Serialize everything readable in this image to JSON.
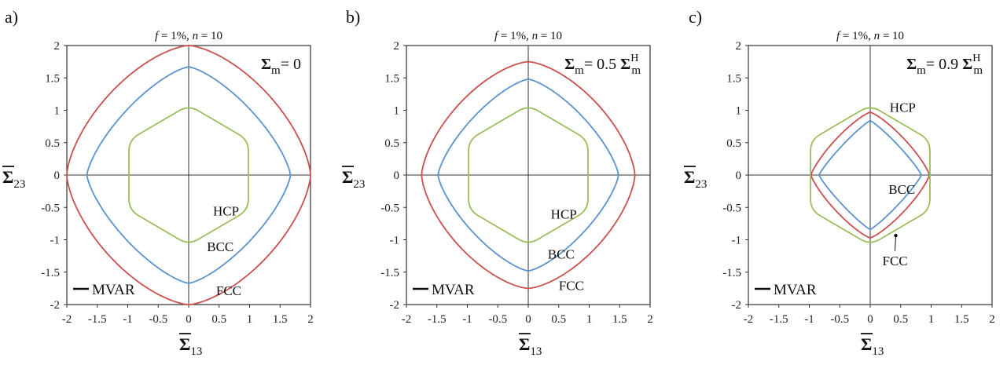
{
  "colors": {
    "FCC": "#c9504f",
    "BCC": "#5b93cf",
    "HCP": "#9bbd5c",
    "axes": "#333333"
  },
  "chart_data": [
    {
      "panel_letter": "a)",
      "type": "line",
      "subtitle": {
        "pre": "f",
        "mid": " = 1%, ",
        "n": "n",
        "post": " = 10"
      },
      "annotation": {
        "main": "Σ",
        "sub": "m",
        "rest": "= 0",
        "coef": "",
        "sup": ""
      },
      "xlabel": {
        "main": "Σ",
        "sub": "13"
      },
      "ylabel": {
        "main": "Σ",
        "sub": "23"
      },
      "xlim": [
        -2,
        2
      ],
      "ylim": [
        -2,
        2
      ],
      "xticks": [
        "-2",
        "-1.5",
        "-1",
        "-0.5",
        "0",
        "0.5",
        "1",
        "1.5",
        "2"
      ],
      "yticks": [
        "-2",
        "-1.5",
        "-1",
        "-0.5",
        "0",
        "0.5",
        "1",
        "1.5",
        "2"
      ],
      "legend": {
        "label": "MVAR",
        "position": "bottom-left"
      },
      "series": [
        {
          "name": "FCC",
          "shape": "squircle",
          "radius": 2.0,
          "exponent": 1.3,
          "label_at": [
            0.45,
            -1.78
          ]
        },
        {
          "name": "BCC",
          "shape": "squircle",
          "radius": 1.67,
          "exponent": 1.45,
          "label_at": [
            0.3,
            -1.1
          ]
        },
        {
          "name": "HCP",
          "shape": "hexagon",
          "radius": 1.08,
          "half_width": 0.98,
          "label_at": [
            0.4,
            -0.55
          ]
        }
      ]
    },
    {
      "panel_letter": "b)",
      "type": "line",
      "subtitle": {
        "pre": "f",
        "mid": " = 1%, ",
        "n": "n",
        "post": " = 10"
      },
      "annotation": {
        "main": "Σ",
        "sub": "m",
        "rest": "= 0.5 ",
        "coef": "Σ",
        "sup": "H"
      },
      "xlabel": {
        "main": "Σ",
        "sub": "13"
      },
      "ylabel": {
        "main": "Σ",
        "sub": "23"
      },
      "xlim": [
        -2,
        2
      ],
      "ylim": [
        -2,
        2
      ],
      "xticks": [
        "-2",
        "-1.5",
        "-1",
        "-0.5",
        "0",
        "0.5",
        "1",
        "1.5",
        "2"
      ],
      "yticks": [
        "-2",
        "-1.5",
        "-1",
        "-0.5",
        "0",
        "0.5",
        "1",
        "1.5",
        "2"
      ],
      "legend": {
        "label": "MVAR",
        "position": "bottom-left"
      },
      "series": [
        {
          "name": "FCC",
          "shape": "squircle",
          "radius": 1.75,
          "exponent": 1.3,
          "label_at": [
            0.5,
            -1.7
          ]
        },
        {
          "name": "BCC",
          "shape": "squircle",
          "radius": 1.48,
          "exponent": 1.45,
          "label_at": [
            0.32,
            -1.22
          ]
        },
        {
          "name": "HCP",
          "shape": "hexagon",
          "radius": 1.08,
          "half_width": 0.98,
          "label_at": [
            0.37,
            -0.6
          ]
        }
      ]
    },
    {
      "panel_letter": "c)",
      "type": "line",
      "subtitle": {
        "pre": "f",
        "mid": " = 1%, ",
        "n": "n",
        "post": " = 10"
      },
      "annotation": {
        "main": "Σ",
        "sub": "m",
        "rest": "= 0.9 ",
        "coef": "Σ",
        "sup": "H"
      },
      "xlabel": {
        "main": "Σ",
        "sub": "13"
      },
      "ylabel": {
        "main": "Σ",
        "sub": "23"
      },
      "xlim": [
        -2,
        2
      ],
      "ylim": [
        -2,
        2
      ],
      "xticks": [
        "-2",
        "-1.5",
        "-1",
        "-0.5",
        "0",
        "0.5",
        "1",
        "1.5",
        "2"
      ],
      "yticks": [
        "-2",
        "-1.5",
        "-1",
        "-0.5",
        "0",
        "0.5",
        "1",
        "1.5",
        "2"
      ],
      "legend": {
        "label": "MVAR",
        "position": "bottom-left"
      },
      "series": [
        {
          "name": "FCC",
          "shape": "squircle",
          "radius": 0.97,
          "exponent": 1.6,
          "label_at": [
            0.2,
            -1.32
          ],
          "pointer_to": [
            0.42,
            -0.91
          ]
        },
        {
          "name": "BCC",
          "shape": "squircle",
          "radius": 0.84,
          "exponent": 1.75,
          "label_at": [
            0.3,
            -0.22
          ]
        },
        {
          "name": "HCP",
          "shape": "hexagon",
          "radius": 1.08,
          "half_width": 0.98,
          "label_at": [
            0.32,
            1.05
          ]
        }
      ]
    }
  ]
}
